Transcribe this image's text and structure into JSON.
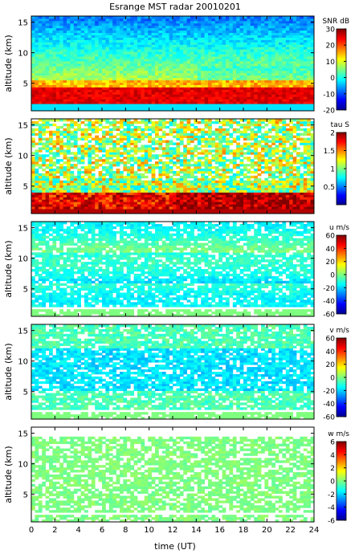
{
  "figure_title": "Esrange MST radar 20010201",
  "colormap": [
    "#00008f",
    "#0000ff",
    "#007fff",
    "#00ffff",
    "#7fff7f",
    "#ffff00",
    "#ff7f00",
    "#ff0000",
    "#7f0000"
  ],
  "chart_data": [
    {
      "type": "heatmap",
      "quantity": "SNR",
      "title": "Esrange MST radar 20010201",
      "xlabel": "",
      "ylabel": "altitude (km)",
      "xlim": [
        0,
        24
      ],
      "ylim": [
        0.5,
        16
      ],
      "yticks": [
        5,
        10,
        15
      ],
      "colorbar": {
        "label": "SNR dB",
        "range": [
          -20,
          30
        ],
        "ticks": [
          -20,
          -10,
          0,
          10,
          20,
          30
        ]
      }
    },
    {
      "type": "heatmap",
      "quantity": "tau",
      "xlabel": "",
      "ylabel": "altitude (km)",
      "xlim": [
        0,
        24
      ],
      "ylim": [
        0.5,
        16
      ],
      "yticks": [
        5,
        10,
        15
      ],
      "colorbar": {
        "label": "tau S",
        "range": [
          0,
          2
        ],
        "ticks": [
          0.5,
          1,
          1.5,
          2
        ]
      }
    },
    {
      "type": "heatmap",
      "quantity": "u",
      "xlabel": "",
      "ylabel": "altitude (km)",
      "xlim": [
        0,
        24
      ],
      "ylim": [
        0.5,
        16
      ],
      "yticks": [
        5,
        10,
        15
      ],
      "colorbar": {
        "label": "u m/s",
        "range": [
          -60,
          60
        ],
        "ticks": [
          -60,
          -40,
          -20,
          0,
          20,
          40,
          60
        ]
      }
    },
    {
      "type": "heatmap",
      "quantity": "v",
      "xlabel": "",
      "ylabel": "altitude (km)",
      "xlim": [
        0,
        24
      ],
      "ylim": [
        0.5,
        16
      ],
      "yticks": [
        5,
        10,
        15
      ],
      "colorbar": {
        "label": "v m/s",
        "range": [
          -60,
          60
        ],
        "ticks": [
          -60,
          -40,
          -20,
          0,
          20,
          40,
          60
        ]
      }
    },
    {
      "type": "heatmap",
      "quantity": "w",
      "xlabel": "time (UT)",
      "ylabel": "altitude (km)",
      "xlim": [
        0,
        24
      ],
      "ylim": [
        0.5,
        16
      ],
      "yticks": [
        5,
        10,
        15
      ],
      "xticks": [
        0,
        2,
        4,
        6,
        8,
        10,
        12,
        14,
        16,
        18,
        20,
        22,
        24
      ],
      "colorbar": {
        "label": "w m/s",
        "range": [
          -6,
          6
        ],
        "ticks": [
          -6,
          -4,
          -2,
          0,
          2,
          4,
          6
        ]
      }
    }
  ]
}
